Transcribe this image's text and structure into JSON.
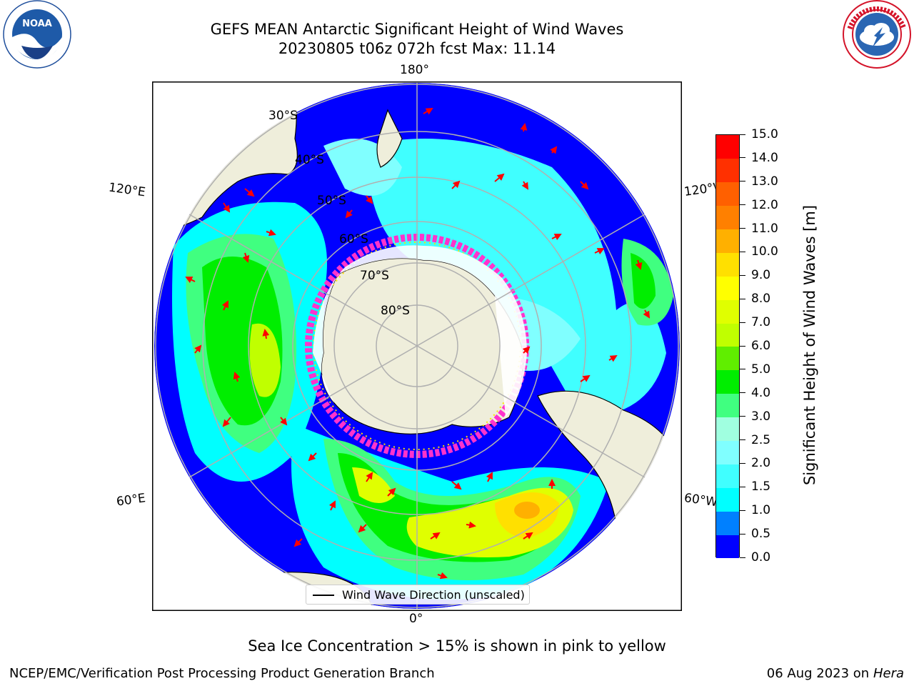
{
  "header": {
    "title_line1": "GEFS MEAN Antarctic Significant Height of Wind Waves",
    "title_line2": "20230805 t06z 072h fcst   Max: 11.14"
  },
  "logos": {
    "noaa_text": "NOAA",
    "nws_ring_text": "NATIONAL WEATHER SERVICE"
  },
  "map": {
    "projection": "south polar stereographic",
    "longitude_labels": {
      "top": "180°",
      "bottom": "0°",
      "left_upper": "120°E",
      "left_lower": "60°E",
      "right_upper": "120°W",
      "right_lower": "60°W"
    },
    "latitude_labels": [
      "30°S",
      "40°S",
      "50°S",
      "60°S",
      "70°S",
      "80°S"
    ],
    "legend_label": "Wind Wave Direction (unscaled)",
    "colors": {
      "land": "#efeedb",
      "ocean_base": "#0000ff",
      "grid": "#b0b0b0",
      "arrow": "#ff0000",
      "sea_ice": "#ff33cc"
    }
  },
  "colorbar": {
    "title": "Significant Height of Wind Waves [m]",
    "tick_labels": [
      "0.0",
      "0.5",
      "1.0",
      "1.5",
      "2.0",
      "2.5",
      "3.0",
      "4.0",
      "5.0",
      "6.0",
      "7.0",
      "8.0",
      "9.0",
      "10.0",
      "11.0",
      "12.0",
      "13.0",
      "14.0",
      "15.0"
    ],
    "colors": [
      "#0000ff",
      "#0080ff",
      "#00ffff",
      "#40ffff",
      "#80ffff",
      "#a0ffe0",
      "#40ff80",
      "#00ee00",
      "#60ee00",
      "#c0ff00",
      "#e0ff00",
      "#ffff00",
      "#ffe000",
      "#ffb000",
      "#ff8000",
      "#ff6000",
      "#ff3000",
      "#ff0000"
    ]
  },
  "footer": {
    "note": "Sea Ice Concentration > 15% is shown in pink to yellow",
    "credit": "NCEP/EMC/Verification Post Processing Product Generation Branch",
    "date": "06 Aug 2023 on",
    "machine": "Hera"
  }
}
